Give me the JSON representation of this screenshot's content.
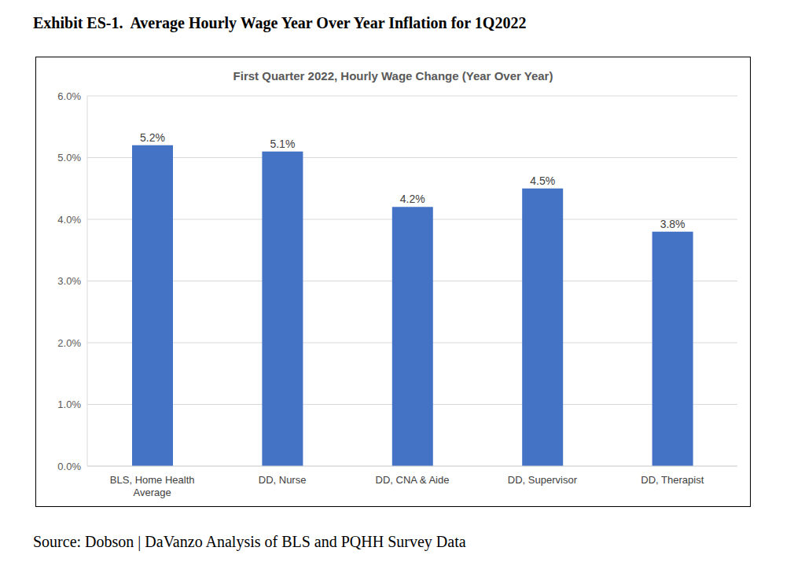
{
  "exhibit_title": "Exhibit ES-1.  Average Hourly Wage Year Over Year Inflation for 1Q2022",
  "chart_data": {
    "type": "bar",
    "title": "First Quarter 2022, Hourly Wage Change (Year Over Year)",
    "categories": [
      "BLS, Home Health Average",
      "DD, Nurse",
      "DD, CNA & Aide",
      "DD, Supervisor",
      "DD, Therapist"
    ],
    "values": [
      5.2,
      5.1,
      4.2,
      4.5,
      3.8
    ],
    "value_labels": [
      "5.2%",
      "5.1%",
      "4.2%",
      "4.5%",
      "3.8%"
    ],
    "color": "#4472c4",
    "ylim": [
      0,
      6
    ],
    "yticks": [
      {
        "value": 0,
        "label": "0.0%"
      },
      {
        "value": 1,
        "label": "1.0%"
      },
      {
        "value": 2,
        "label": "2.0%"
      },
      {
        "value": 3,
        "label": "3.0%"
      },
      {
        "value": 4,
        "label": "4.0%"
      },
      {
        "value": 5,
        "label": "5.0%"
      },
      {
        "value": 6,
        "label": "6.0%"
      }
    ],
    "grid": true,
    "data_labels": true
  },
  "source": "Source: Dobson | DaVanzo Analysis of BLS and PQHH Survey Data"
}
